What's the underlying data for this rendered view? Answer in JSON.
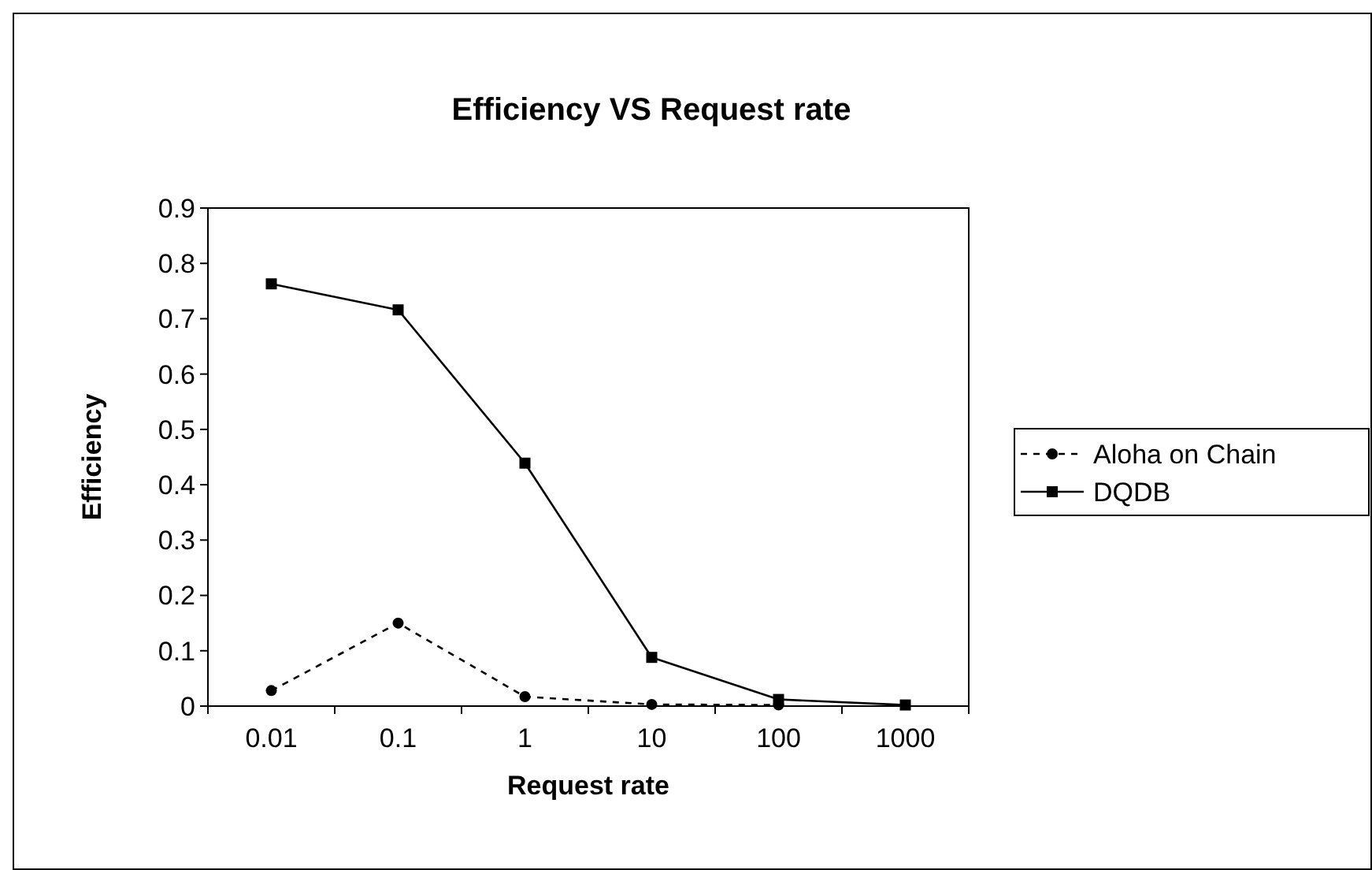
{
  "chart_data": {
    "type": "line",
    "title": "Efficiency VS Request rate",
    "xlabel": "Request rate",
    "ylabel": "Efficiency",
    "categories": [
      "0.01",
      "0.1",
      "1",
      "10",
      "100",
      "1000"
    ],
    "series": [
      {
        "name": "Aloha on Chain",
        "color": "#000000",
        "line_style": "dashed",
        "marker": "circle",
        "values": [
          0.028,
          0.15,
          0.017,
          0.003,
          0.002,
          null
        ]
      },
      {
        "name": "DQDB",
        "color": "#000000",
        "line_style": "solid",
        "marker": "square",
        "values": [
          0.763,
          0.716,
          0.439,
          0.088,
          0.012,
          0.002
        ]
      }
    ],
    "ylim": [
      0,
      0.9
    ],
    "yticks": [
      0,
      0.1,
      0.2,
      0.3,
      0.4,
      0.5,
      0.6,
      0.7,
      0.8,
      0.9
    ],
    "grid": false,
    "legend": "right"
  }
}
